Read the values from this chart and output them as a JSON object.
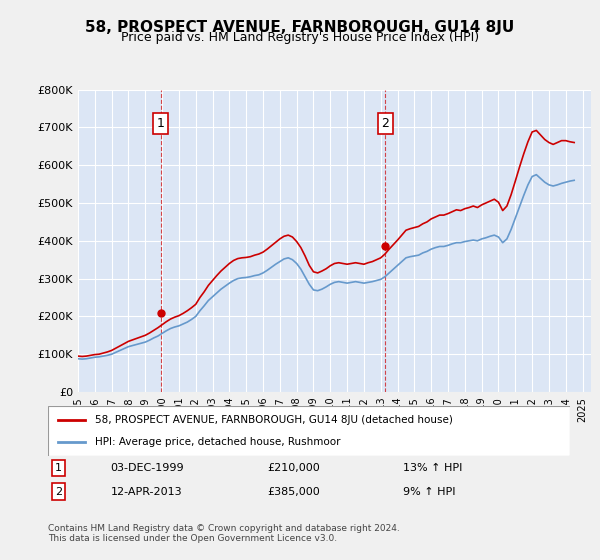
{
  "title": "58, PROSPECT AVENUE, FARNBOROUGH, GU14 8JU",
  "subtitle": "Price paid vs. HM Land Registry's House Price Index (HPI)",
  "ylabel_ticks": [
    "£0",
    "£100K",
    "£200K",
    "£300K",
    "£400K",
    "£500K",
    "£600K",
    "£700K",
    "£800K"
  ],
  "ylim": [
    0,
    800000
  ],
  "xlim_start": 1995.0,
  "xlim_end": 2025.5,
  "background_color": "#e8eef8",
  "plot_bg": "#dce6f5",
  "grid_color": "#ffffff",
  "red_line_color": "#cc0000",
  "blue_line_color": "#6699cc",
  "marker1_date": "03-DEC-1999",
  "marker1_price": "£210,000",
  "marker1_hpi": "13% ↑ HPI",
  "marker1_x": 1999.92,
  "marker1_y": 210000,
  "marker2_date": "12-APR-2013",
  "marker2_price": "£385,000",
  "marker2_hpi": "9% ↑ HPI",
  "marker2_x": 2013.28,
  "marker2_y": 385000,
  "legend_line1": "58, PROSPECT AVENUE, FARNBOROUGH, GU14 8JU (detached house)",
  "legend_line2": "HPI: Average price, detached house, Rushmoor",
  "footnote": "Contains HM Land Registry data © Crown copyright and database right 2024.\nThis data is licensed under the Open Government Licence v3.0.",
  "hpi_data_x": [
    1995.0,
    1995.25,
    1995.5,
    1995.75,
    1996.0,
    1996.25,
    1996.5,
    1996.75,
    1997.0,
    1997.25,
    1997.5,
    1997.75,
    1998.0,
    1998.25,
    1998.5,
    1998.75,
    1999.0,
    1999.25,
    1999.5,
    1999.75,
    2000.0,
    2000.25,
    2000.5,
    2000.75,
    2001.0,
    2001.25,
    2001.5,
    2001.75,
    2002.0,
    2002.25,
    2002.5,
    2002.75,
    2003.0,
    2003.25,
    2003.5,
    2003.75,
    2004.0,
    2004.25,
    2004.5,
    2004.75,
    2005.0,
    2005.25,
    2005.5,
    2005.75,
    2006.0,
    2006.25,
    2006.5,
    2006.75,
    2007.0,
    2007.25,
    2007.5,
    2007.75,
    2008.0,
    2008.25,
    2008.5,
    2008.75,
    2009.0,
    2009.25,
    2009.5,
    2009.75,
    2010.0,
    2010.25,
    2010.5,
    2010.75,
    2011.0,
    2011.25,
    2011.5,
    2011.75,
    2012.0,
    2012.25,
    2012.5,
    2012.75,
    2013.0,
    2013.25,
    2013.5,
    2013.75,
    2014.0,
    2014.25,
    2014.5,
    2014.75,
    2015.0,
    2015.25,
    2015.5,
    2015.75,
    2016.0,
    2016.25,
    2016.5,
    2016.75,
    2017.0,
    2017.25,
    2017.5,
    2017.75,
    2018.0,
    2018.25,
    2018.5,
    2018.75,
    2019.0,
    2019.25,
    2019.5,
    2019.75,
    2020.0,
    2020.25,
    2020.5,
    2020.75,
    2021.0,
    2021.25,
    2021.5,
    2021.75,
    2022.0,
    2022.25,
    2022.5,
    2022.75,
    2023.0,
    2023.25,
    2023.5,
    2023.75,
    2024.0,
    2024.25,
    2024.5
  ],
  "hpi_data_y": [
    88000,
    87000,
    88000,
    90000,
    92000,
    93000,
    95000,
    97000,
    100000,
    105000,
    110000,
    115000,
    120000,
    123000,
    126000,
    129000,
    132000,
    137000,
    143000,
    148000,
    155000,
    162000,
    168000,
    172000,
    175000,
    180000,
    185000,
    192000,
    200000,
    215000,
    228000,
    242000,
    252000,
    262000,
    272000,
    280000,
    288000,
    295000,
    300000,
    302000,
    303000,
    305000,
    308000,
    310000,
    315000,
    322000,
    330000,
    338000,
    345000,
    352000,
    355000,
    350000,
    340000,
    325000,
    305000,
    285000,
    270000,
    268000,
    272000,
    278000,
    285000,
    290000,
    292000,
    290000,
    288000,
    290000,
    292000,
    290000,
    288000,
    290000,
    292000,
    295000,
    298000,
    305000,
    315000,
    325000,
    335000,
    345000,
    355000,
    358000,
    360000,
    362000,
    368000,
    372000,
    378000,
    382000,
    385000,
    385000,
    388000,
    392000,
    395000,
    395000,
    398000,
    400000,
    402000,
    400000,
    405000,
    408000,
    412000,
    415000,
    410000,
    395000,
    405000,
    430000,
    460000,
    490000,
    520000,
    548000,
    570000,
    575000,
    565000,
    555000,
    548000,
    545000,
    548000,
    552000,
    555000,
    558000,
    560000
  ],
  "red_data_x": [
    1995.0,
    1995.25,
    1995.5,
    1995.75,
    1996.0,
    1996.25,
    1996.5,
    1996.75,
    1997.0,
    1997.25,
    1997.5,
    1997.75,
    1998.0,
    1998.25,
    1998.5,
    1998.75,
    1999.0,
    1999.25,
    1999.5,
    1999.75,
    2000.0,
    2000.25,
    2000.5,
    2000.75,
    2001.0,
    2001.25,
    2001.5,
    2001.75,
    2002.0,
    2002.25,
    2002.5,
    2002.75,
    2003.0,
    2003.25,
    2003.5,
    2003.75,
    2004.0,
    2004.25,
    2004.5,
    2004.75,
    2005.0,
    2005.25,
    2005.5,
    2005.75,
    2006.0,
    2006.25,
    2006.5,
    2006.75,
    2007.0,
    2007.25,
    2007.5,
    2007.75,
    2008.0,
    2008.25,
    2008.5,
    2008.75,
    2009.0,
    2009.25,
    2009.5,
    2009.75,
    2010.0,
    2010.25,
    2010.5,
    2010.75,
    2011.0,
    2011.25,
    2011.5,
    2011.75,
    2012.0,
    2012.25,
    2012.5,
    2012.75,
    2013.0,
    2013.25,
    2013.5,
    2013.75,
    2014.0,
    2014.25,
    2014.5,
    2014.75,
    2015.0,
    2015.25,
    2015.5,
    2015.75,
    2016.0,
    2016.25,
    2016.5,
    2016.75,
    2017.0,
    2017.25,
    2017.5,
    2017.75,
    2018.0,
    2018.25,
    2018.5,
    2018.75,
    2019.0,
    2019.25,
    2019.5,
    2019.75,
    2020.0,
    2020.25,
    2020.5,
    2020.75,
    2021.0,
    2021.25,
    2021.5,
    2021.75,
    2022.0,
    2022.25,
    2022.5,
    2022.75,
    2023.0,
    2023.25,
    2023.5,
    2023.75,
    2024.0,
    2024.25,
    2024.5
  ],
  "red_data_y": [
    95000,
    94000,
    95000,
    97000,
    99000,
    100000,
    103000,
    106000,
    110000,
    116000,
    122000,
    128000,
    134000,
    138000,
    142000,
    146000,
    150000,
    156000,
    163000,
    170000,
    178000,
    186000,
    193000,
    198000,
    202000,
    208000,
    215000,
    223000,
    232000,
    250000,
    265000,
    282000,
    295000,
    308000,
    320000,
    330000,
    340000,
    348000,
    353000,
    355000,
    356000,
    358000,
    362000,
    365000,
    370000,
    378000,
    387000,
    396000,
    405000,
    412000,
    415000,
    410000,
    398000,
    382000,
    360000,
    335000,
    318000,
    315000,
    320000,
    326000,
    334000,
    340000,
    342000,
    340000,
    338000,
    340000,
    342000,
    340000,
    338000,
    342000,
    345000,
    350000,
    355000,
    365000,
    378000,
    390000,
    402000,
    415000,
    428000,
    432000,
    435000,
    438000,
    445000,
    450000,
    458000,
    463000,
    468000,
    468000,
    472000,
    477000,
    482000,
    480000,
    485000,
    488000,
    492000,
    488000,
    495000,
    500000,
    505000,
    510000,
    502000,
    480000,
    492000,
    522000,
    558000,
    595000,
    630000,
    662000,
    688000,
    692000,
    680000,
    668000,
    660000,
    655000,
    660000,
    665000,
    665000,
    662000,
    660000
  ]
}
